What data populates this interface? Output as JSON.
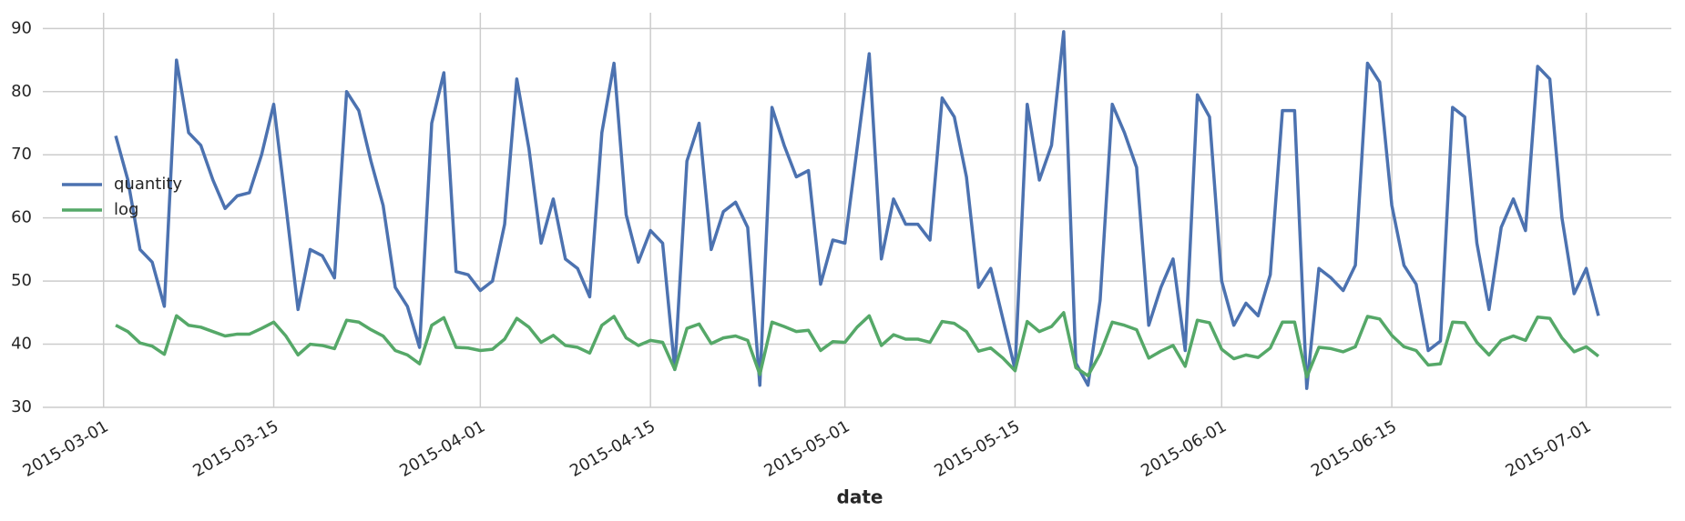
{
  "chart_data": {
    "type": "line",
    "x_label": "date",
    "x": [
      "2015-03-02",
      "2015-03-03",
      "2015-03-04",
      "2015-03-05",
      "2015-03-06",
      "2015-03-07",
      "2015-03-08",
      "2015-03-09",
      "2015-03-10",
      "2015-03-11",
      "2015-03-12",
      "2015-03-13",
      "2015-03-14",
      "2015-03-15",
      "2015-03-16",
      "2015-03-17",
      "2015-03-18",
      "2015-03-19",
      "2015-03-20",
      "2015-03-21",
      "2015-03-22",
      "2015-03-23",
      "2015-03-24",
      "2015-03-25",
      "2015-03-26",
      "2015-03-27",
      "2015-03-28",
      "2015-03-29",
      "2015-03-30",
      "2015-03-31",
      "2015-04-01",
      "2015-04-02",
      "2015-04-03",
      "2015-04-04",
      "2015-04-05",
      "2015-04-06",
      "2015-04-07",
      "2015-04-08",
      "2015-04-09",
      "2015-04-10",
      "2015-04-11",
      "2015-04-12",
      "2015-04-13",
      "2015-04-14",
      "2015-04-15",
      "2015-04-16",
      "2015-04-17",
      "2015-04-18",
      "2015-04-19",
      "2015-04-20",
      "2015-04-21",
      "2015-04-22",
      "2015-04-23",
      "2015-04-24",
      "2015-04-25",
      "2015-04-26",
      "2015-04-27",
      "2015-04-28",
      "2015-04-29",
      "2015-04-30",
      "2015-05-01",
      "2015-05-02",
      "2015-05-03",
      "2015-05-04",
      "2015-05-05",
      "2015-05-06",
      "2015-05-07",
      "2015-05-08",
      "2015-05-09",
      "2015-05-10",
      "2015-05-11",
      "2015-05-12",
      "2015-05-13",
      "2015-05-14",
      "2015-05-15",
      "2015-05-16",
      "2015-05-17",
      "2015-05-18",
      "2015-05-19",
      "2015-05-20",
      "2015-05-21",
      "2015-05-22",
      "2015-05-23",
      "2015-05-24",
      "2015-05-25",
      "2015-05-26",
      "2015-05-27",
      "2015-05-28",
      "2015-05-29",
      "2015-05-30",
      "2015-05-31",
      "2015-06-01",
      "2015-06-02",
      "2015-06-03",
      "2015-06-04",
      "2015-06-05",
      "2015-06-06",
      "2015-06-07",
      "2015-06-08",
      "2015-06-09",
      "2015-06-10",
      "2015-06-11",
      "2015-06-12",
      "2015-06-13",
      "2015-06-14",
      "2015-06-15",
      "2015-06-16",
      "2015-06-17",
      "2015-06-18",
      "2015-06-19",
      "2015-06-20",
      "2015-06-21",
      "2015-06-22",
      "2015-06-23",
      "2015-06-24",
      "2015-06-25",
      "2015-06-26",
      "2015-06-27",
      "2015-06-28",
      "2015-06-29",
      "2015-06-30",
      "2015-07-01",
      "2015-07-02"
    ],
    "series": [
      {
        "name": "quantity",
        "color": "#4c72b0",
        "values": [
          73,
          66,
          55,
          53,
          46,
          85,
          73.5,
          71.5,
          66,
          61.5,
          63.5,
          64,
          70,
          78,
          62,
          45.5,
          55,
          54,
          50.5,
          80,
          77,
          69,
          62,
          49,
          46,
          39.5,
          75,
          83,
          51.5,
          51,
          48.5,
          50,
          59,
          82,
          71,
          56,
          63,
          53.5,
          52,
          47.5,
          73.5,
          84.5,
          60.5,
          53,
          58,
          56,
          36,
          69,
          75,
          55,
          61,
          62.5,
          58.5,
          33.5,
          77.5,
          71.5,
          66.5,
          67.5,
          49.5,
          56.5,
          56,
          71,
          86,
          53.5,
          63,
          59,
          59,
          56.5,
          79,
          76,
          66.5,
          49,
          52,
          44,
          36,
          78,
          66,
          71.5,
          89.5,
          37,
          33.5,
          47,
          78,
          73.5,
          68,
          43,
          49,
          53.5,
          39,
          79.5,
          76,
          50,
          43,
          46.5,
          44.5,
          51,
          77,
          77,
          33,
          52,
          50.5,
          48.5,
          52.5,
          84.5,
          81.5,
          62,
          52.5,
          49.5,
          39,
          40.5,
          77.5,
          76,
          56,
          45.5,
          58.5,
          63,
          58,
          84,
          82,
          60,
          48,
          52,
          44.5
        ]
      },
      {
        "name": "log",
        "color": "#55a868",
        "values": [
          43,
          42,
          40.2,
          39.7,
          38.4,
          44.5,
          43,
          42.7,
          42,
          41.3,
          41.6,
          41.6,
          42.5,
          43.5,
          41.3,
          38.3,
          40,
          39.8,
          39.3,
          43.8,
          43.5,
          42.3,
          41.3,
          39,
          38.3,
          36.9,
          43,
          44.2,
          39.5,
          39.4,
          39,
          39.2,
          40.8,
          44.1,
          42.7,
          40.3,
          41.4,
          39.8,
          39.5,
          38.6,
          43,
          44.4,
          41,
          39.8,
          40.6,
          40.3,
          36,
          42.5,
          43.2,
          40.1,
          41,
          41.3,
          40.6,
          35.2,
          43.5,
          42.8,
          42,
          42.2,
          39,
          40.4,
          40.3,
          42.7,
          44.5,
          39.8,
          41.5,
          40.8,
          40.8,
          40.3,
          43.6,
          43.3,
          42,
          38.9,
          39.4,
          37.8,
          35.8,
          43.6,
          42,
          42.8,
          45,
          36.3,
          35,
          38.5,
          43.5,
          43,
          42.3,
          37.8,
          38.9,
          39.8,
          36.5,
          43.8,
          43.4,
          39.2,
          37.7,
          38.3,
          37.9,
          39.4,
          43.5,
          43.5,
          34.8,
          39.5,
          39.3,
          38.8,
          39.6,
          44.4,
          44,
          41.4,
          39.6,
          39,
          36.7,
          36.9,
          43.5,
          43.4,
          40.3,
          38.3,
          40.6,
          41.3,
          40.6,
          44.3,
          44.1,
          41,
          38.8,
          39.6,
          38.1
        ]
      }
    ],
    "xlim": [
      "2015-02-24",
      "2015-07-08"
    ],
    "xticks": [
      "2015-03-01",
      "2015-03-15",
      "2015-04-01",
      "2015-04-15",
      "2015-05-01",
      "2015-05-15",
      "2015-06-01",
      "2015-06-15",
      "2015-07-01"
    ],
    "ylim": [
      30,
      92.5
    ],
    "yticks": [
      30,
      40,
      50,
      60,
      70,
      80,
      90
    ],
    "grid": true,
    "legend": "center left"
  }
}
